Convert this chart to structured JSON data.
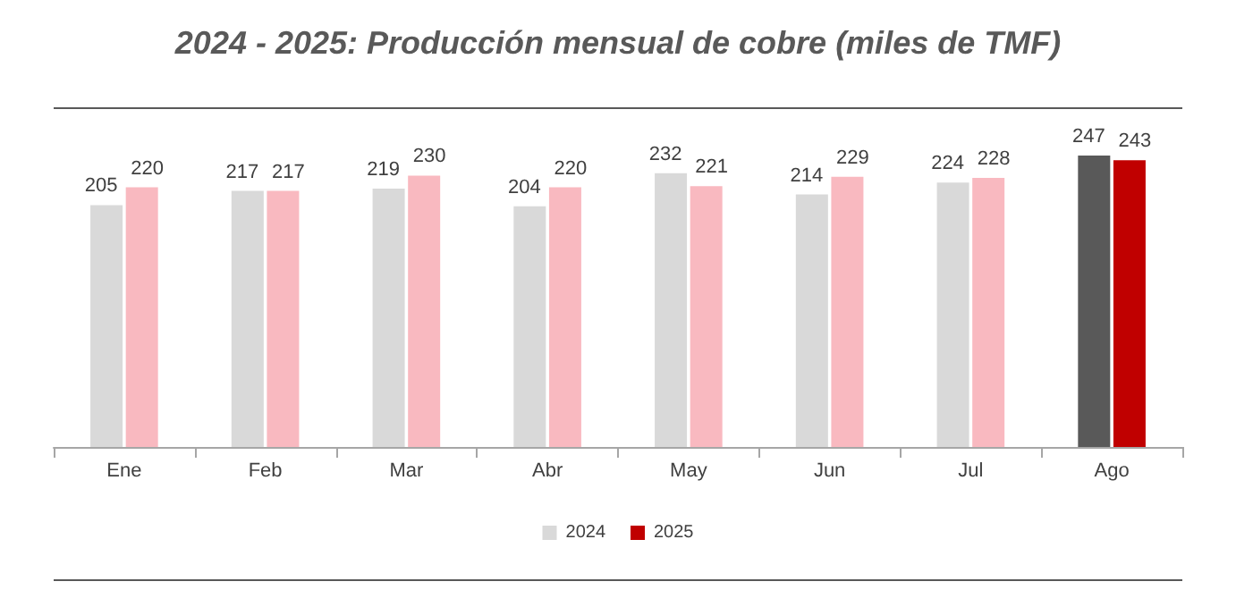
{
  "chart_data": {
    "type": "bar",
    "title": "2024 - 2025: Producción mensual de cobre (miles de TMF)",
    "categories": [
      "Ene",
      "Feb",
      "Mar",
      "Abr",
      "May",
      "Jun",
      "Jul",
      "Ago"
    ],
    "series": [
      {
        "name": "2024",
        "color": "#d9d9d9",
        "colors": [
          "#d9d9d9",
          "#d9d9d9",
          "#d9d9d9",
          "#d9d9d9",
          "#d9d9d9",
          "#d9d9d9",
          "#d9d9d9",
          "#595959"
        ],
        "values": [
          205,
          217,
          219,
          204,
          232,
          214,
          224,
          247
        ]
      },
      {
        "name": "2025",
        "color": "#c00000",
        "colors": [
          "#f9b9c0",
          "#f9b9c0",
          "#f9b9c0",
          "#f9b9c0",
          "#f9b9c0",
          "#f9b9c0",
          "#f9b9c0",
          "#c00000"
        ],
        "values": [
          220,
          217,
          230,
          220,
          221,
          229,
          228,
          243
        ]
      }
    ],
    "data_labels": true,
    "legend": "bottom"
  }
}
